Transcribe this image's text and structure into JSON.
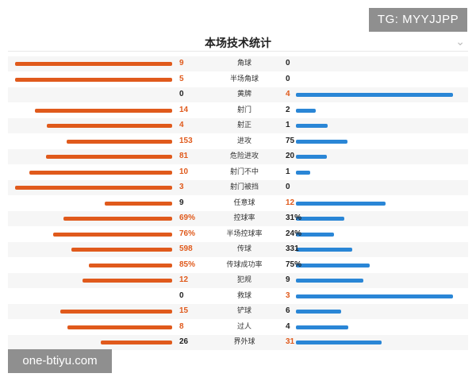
{
  "watermarks": {
    "top_right": "TG: MYYJJPP",
    "bottom_left": "one-btiyu.com"
  },
  "header": {
    "title": "本场技术统计",
    "toggle_icon": "chevron-down-icon"
  },
  "colors": {
    "home": "#e05a1c",
    "away": "#2a86d6",
    "text": "#222222"
  },
  "chart_data": {
    "type": "bar",
    "series": [
      {
        "values": [
          9,
          5,
          0,
          14,
          4,
          153,
          81,
          10,
          3,
          9,
          69,
          76,
          598,
          85,
          12,
          0,
          15,
          8,
          26
        ],
        "color": "#e05a1c"
      },
      {
        "values": [
          0,
          0,
          4,
          2,
          1,
          75,
          20,
          1,
          0,
          12,
          31,
          24,
          331,
          75,
          9,
          3,
          6,
          4,
          31
        ],
        "color": "#2a86d6"
      }
    ],
    "categories": [
      "角球",
      "半场角球",
      "黄牌",
      "射门",
      "射正",
      "进攻",
      "危险进攻",
      "射门不中",
      "射门被挡",
      "任意球",
      "控球率",
      "半场控球率",
      "传球",
      "传球成功率",
      "犯规",
      "救球",
      "铲球",
      "过人",
      "界外球"
    ],
    "stats": [
      {
        "label": "角球",
        "home": "9",
        "away": "0"
      },
      {
        "label": "半场角球",
        "home": "5",
        "away": "0"
      },
      {
        "label": "黄牌",
        "home": "0",
        "away": "4"
      },
      {
        "label": "射门",
        "home": "14",
        "away": "2"
      },
      {
        "label": "射正",
        "home": "4",
        "away": "1"
      },
      {
        "label": "进攻",
        "home": "153",
        "away": "75"
      },
      {
        "label": "危险进攻",
        "home": "81",
        "away": "20"
      },
      {
        "label": "射门不中",
        "home": "10",
        "away": "1"
      },
      {
        "label": "射门被挡",
        "home": "3",
        "away": "0"
      },
      {
        "label": "任意球",
        "home": "9",
        "away": "12"
      },
      {
        "label": "控球率",
        "home": "69%",
        "away": "31%"
      },
      {
        "label": "半场控球率",
        "home": "76%",
        "away": "24%"
      },
      {
        "label": "传球",
        "home": "598",
        "away": "331"
      },
      {
        "label": "传球成功率",
        "home": "85%",
        "away": "75%"
      },
      {
        "label": "犯规",
        "home": "12",
        "away": "9"
      },
      {
        "label": "救球",
        "home": "0",
        "away": "3"
      },
      {
        "label": "铲球",
        "home": "15",
        "away": "6"
      },
      {
        "label": "过人",
        "home": "8",
        "away": "4"
      },
      {
        "label": "界外球",
        "home": "26",
        "away": "31"
      }
    ],
    "legend": "none",
    "grid": false
  }
}
